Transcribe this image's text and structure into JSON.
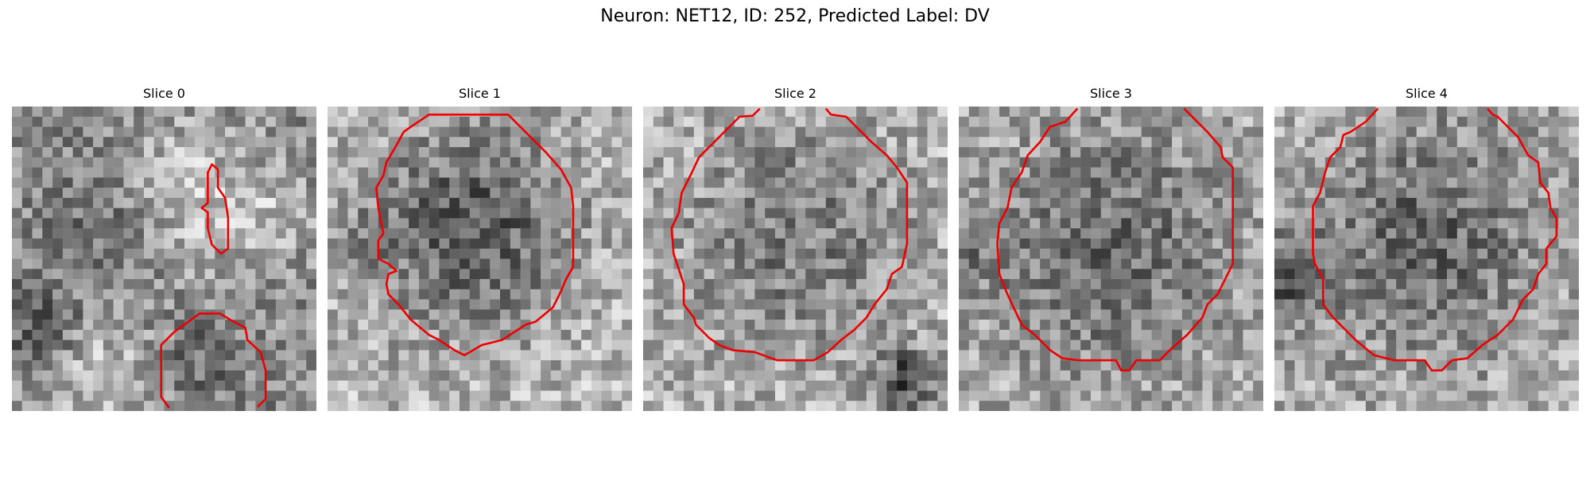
{
  "figure": {
    "title": "Neuron: NET12, ID: 252, Predicted Label: DV"
  },
  "panels": [
    {
      "title": "Slice 0",
      "image": "grayscale-em-patch",
      "overlay": "red-contour"
    },
    {
      "title": "Slice 1",
      "image": "grayscale-em-patch",
      "overlay": "red-contour"
    },
    {
      "title": "Slice 2",
      "image": "grayscale-em-patch",
      "overlay": "red-contour"
    },
    {
      "title": "Slice 3",
      "image": "grayscale-em-patch",
      "overlay": "red-contour"
    },
    {
      "title": "Slice 4",
      "image": "grayscale-em-patch",
      "overlay": "red-contour"
    }
  ],
  "colors": {
    "contour": "#ee0000",
    "background": "#ffffff"
  }
}
